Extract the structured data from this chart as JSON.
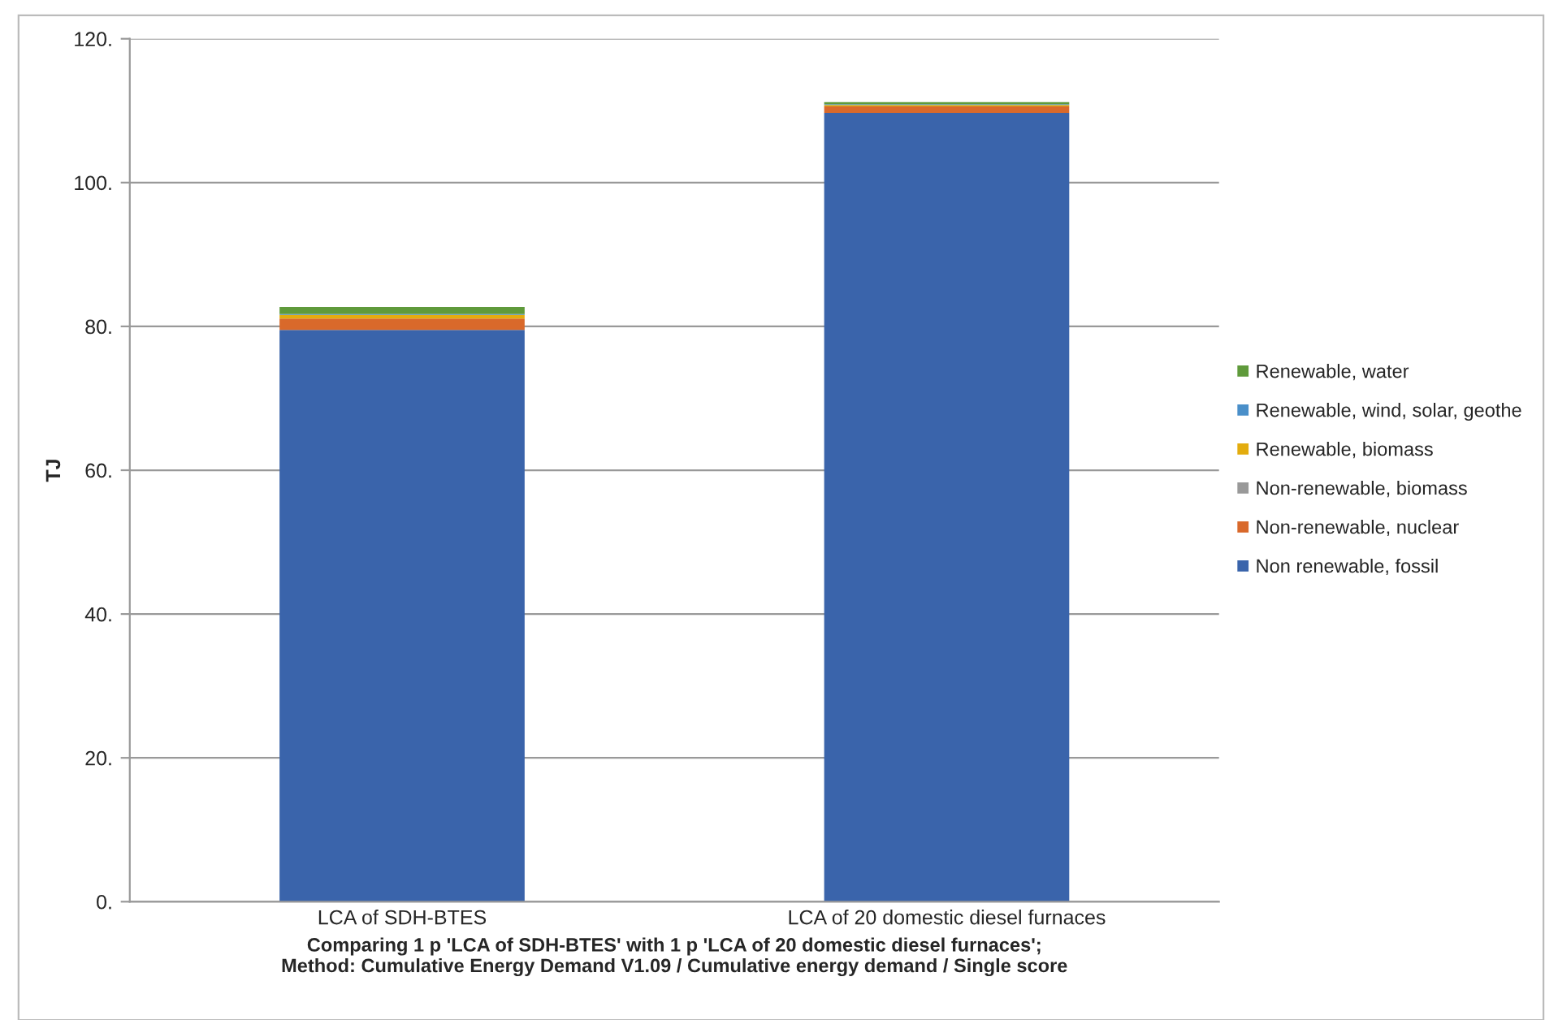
{
  "chart_data": {
    "type": "bar",
    "stacked": true,
    "categories": [
      "LCA of SDH-BTES",
      "LCA of 20 domestic diesel furnaces"
    ],
    "series": [
      {
        "name": "Non renewable, fossil",
        "color": "#3a64ab",
        "values": [
          79.5,
          109.7
        ]
      },
      {
        "name": "Non-renewable, nuclear",
        "color": "#d9692b",
        "values": [
          1.6,
          0.9
        ]
      },
      {
        "name": "Non-renewable, biomass",
        "color": "#999999",
        "values": [
          null,
          null
        ]
      },
      {
        "name": "Renewable, biomass",
        "color": "#e3ac0e",
        "values": [
          0.5,
          0.2
        ]
      },
      {
        "name": "Renewable, wind, solar, geothe",
        "color": "#4a8fc9",
        "values": [
          0.1,
          0.1
        ]
      },
      {
        "name": "Renewable, water",
        "color": "#5f9a3b",
        "values": [
          1.0,
          0.3
        ]
      }
    ],
    "ylabel": "TJ",
    "xlabel": "Comparing 1 p 'LCA of SDH-BTES' with 1 p 'LCA of 20 domestic diesel furnaces';\nMethod: Cumulative Energy Demand V1.09 / Cumulative energy demand / Single score",
    "ylim": [
      0,
      120
    ],
    "yticks": [
      {
        "value": 0,
        "label": "0."
      },
      {
        "value": 20,
        "label": "20."
      },
      {
        "value": 40,
        "label": "40."
      },
      {
        "value": 60,
        "label": "60."
      },
      {
        "value": 80,
        "label": "80."
      },
      {
        "value": 100,
        "label": "100."
      },
      {
        "value": 120,
        "label": "120."
      }
    ],
    "grid": "y",
    "legend": "right"
  }
}
